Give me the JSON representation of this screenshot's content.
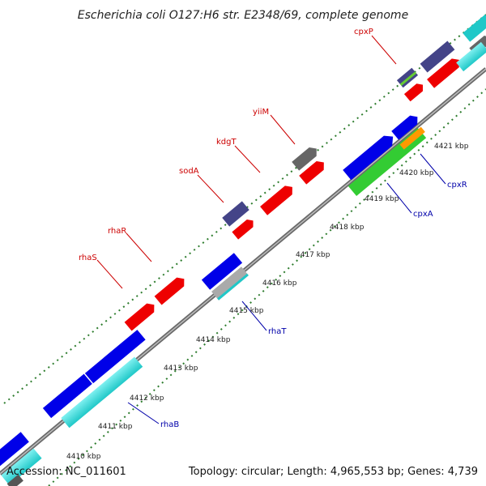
{
  "title": "Escherichia coli O127:H6 str. E2348/69, complete genome",
  "footer": {
    "accession": "Accession: NC_011601",
    "summary": "Topology: circular; Length: 4,965,553 bp; Genes: 4,739"
  },
  "colors": {
    "background": "#ffffff",
    "backbone": "#777777",
    "gc_dots": "#2e7d2e",
    "forward_label": "#cc0000",
    "reverse_label": "#0000aa"
  },
  "ticks": [
    "4410 kbp",
    "4411 kbp",
    "4412 kbp",
    "4413 kbp",
    "4414 kbp",
    "4415 kbp",
    "4416 kbp",
    "4417 kbp",
    "4418 kbp",
    "4419 kbp",
    "4420 kbp",
    "4421 kbp"
  ],
  "gene_labels": {
    "forward": [
      "rhaS",
      "rhaR",
      "sodA",
      "kdgT",
      "yiiM",
      "cpxP"
    ],
    "reverse": [
      "rhaB",
      "rhaT",
      "cpxA",
      "cpxR"
    ]
  }
}
